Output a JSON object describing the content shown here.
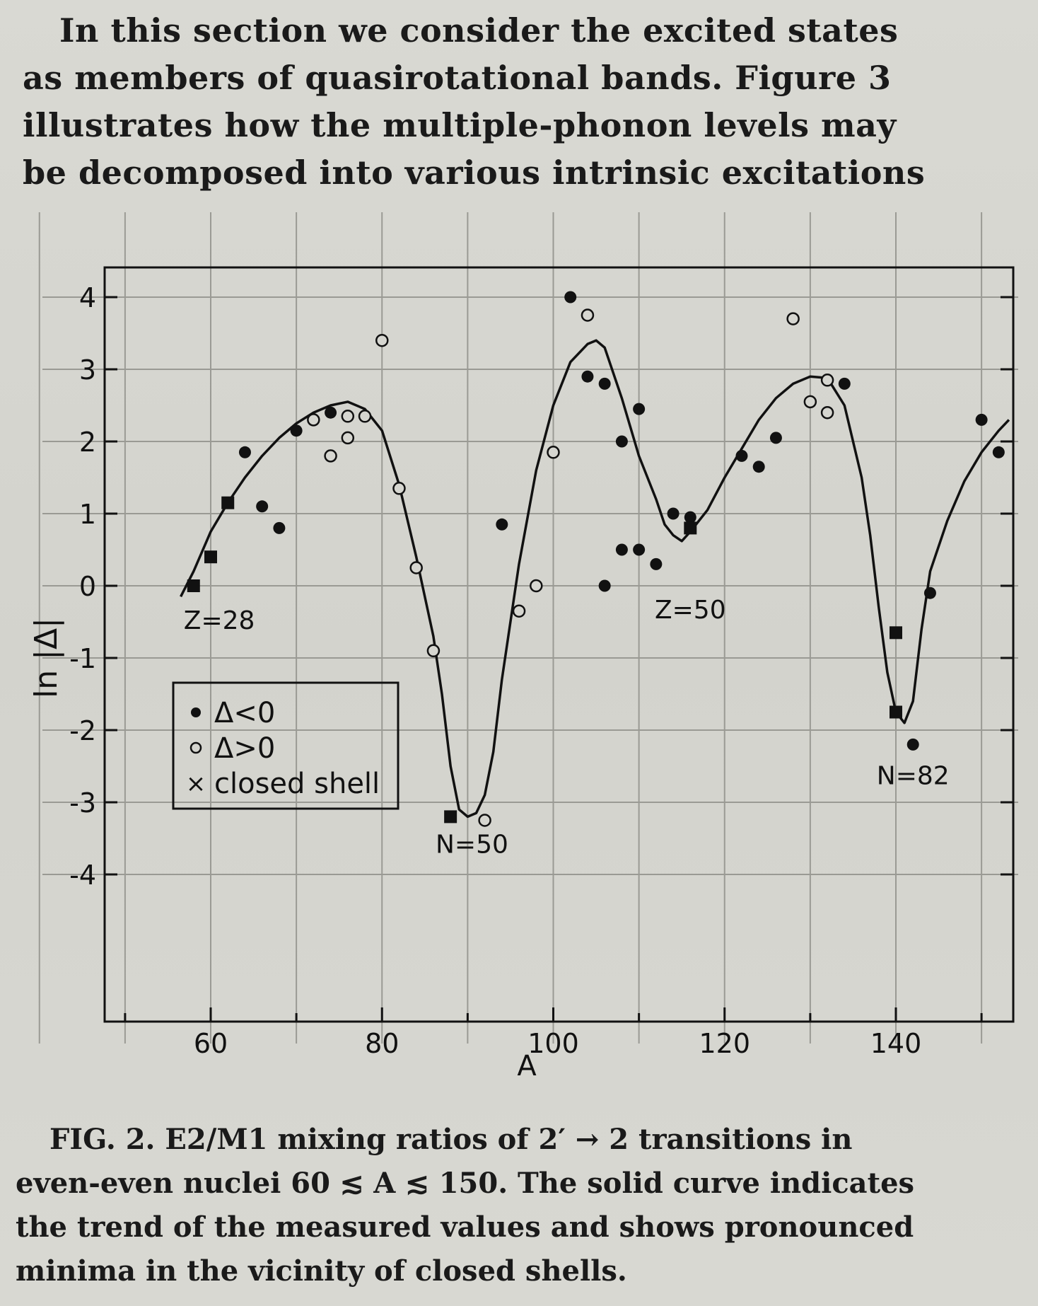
{
  "intro_lines": [
    "In this section we consider the excited states",
    "as members of quasirotational bands.  Figure 3",
    "illustrates how the multiple-phonon levels may",
    "be decomposed into various intrinsic excitations"
  ],
  "caption": {
    "label": "FIG. 2.",
    "lines": [
      "E2/M1 mixing ratios of 2′ → 2 transitions in",
      "even-even nuclei 60 ≲ A ≲ 150.  The solid curve indicates",
      "the trend of the measured values and shows pronounced",
      "minima in the vicinity of closed shells."
    ]
  },
  "chart_data": {
    "type": "scatter",
    "xlabel": "A",
    "ylabel": "ln |Δ|",
    "xlim": [
      40,
      155
    ],
    "ylim": [
      -4,
      4.4
    ],
    "xticks": [
      60,
      80,
      100,
      120,
      140
    ],
    "yticks": [
      4,
      3,
      2,
      1,
      0,
      -1,
      -2,
      -3,
      -4
    ],
    "grid": true,
    "legend": {
      "placement": "lower-left",
      "entries": [
        {
          "symbol": "filled-circle",
          "label": "Δ<0"
        },
        {
          "symbol": "open-circle",
          "label": "Δ>0"
        },
        {
          "symbol": "cross",
          "label": "closed shell"
        }
      ]
    },
    "annotations": [
      {
        "text": "Z=28",
        "x": 61,
        "y": -0.6
      },
      {
        "text": "N=50",
        "x": 90.5,
        "y": -3.7
      },
      {
        "text": "Z=50",
        "x": 116,
        "y": -0.45
      },
      {
        "text": "N=82",
        "x": 142,
        "y": -2.75
      }
    ],
    "series": [
      {
        "name": "Δ<0",
        "marker": "filled-circle",
        "points": [
          [
            64,
            1.85
          ],
          [
            66,
            1.1
          ],
          [
            68,
            0.8
          ],
          [
            70,
            2.15
          ],
          [
            74,
            2.4
          ],
          [
            94,
            0.85
          ],
          [
            102,
            4.0
          ],
          [
            104,
            2.9
          ],
          [
            106,
            2.8
          ],
          [
            106,
            0.0
          ],
          [
            108,
            2.0
          ],
          [
            108,
            0.5
          ],
          [
            110,
            2.45
          ],
          [
            110,
            0.5
          ],
          [
            112,
            0.3
          ],
          [
            114,
            1.0
          ],
          [
            116,
            0.95
          ],
          [
            122,
            1.8
          ],
          [
            124,
            1.65
          ],
          [
            126,
            2.05
          ],
          [
            134,
            2.8
          ],
          [
            142,
            -2.2
          ],
          [
            144,
            -0.1
          ],
          [
            150,
            2.3
          ],
          [
            152,
            1.85
          ]
        ]
      },
      {
        "name": "Δ>0",
        "marker": "open-circle",
        "points": [
          [
            72,
            2.3
          ],
          [
            74,
            1.8
          ],
          [
            76,
            2.35
          ],
          [
            76,
            2.05
          ],
          [
            78,
            2.35
          ],
          [
            80,
            3.4
          ],
          [
            82,
            1.35
          ],
          [
            84,
            0.25
          ],
          [
            86,
            -0.9
          ],
          [
            92,
            -3.25
          ],
          [
            96,
            -0.35
          ],
          [
            98,
            0.0
          ],
          [
            100,
            1.85
          ],
          [
            104,
            3.75
          ],
          [
            128,
            3.7
          ],
          [
            130,
            2.55
          ],
          [
            132,
            2.85
          ],
          [
            132,
            2.4
          ]
        ]
      },
      {
        "name": "closed shell",
        "marker": "square",
        "points": [
          [
            58,
            0.0
          ],
          [
            60,
            0.4
          ],
          [
            62,
            1.15
          ],
          [
            88,
            -3.2
          ],
          [
            116,
            0.8
          ],
          [
            140,
            -0.65
          ],
          [
            140,
            -1.75
          ]
        ]
      }
    ],
    "trend_curve": [
      [
        56.5,
        -0.15
      ],
      [
        58,
        0.2
      ],
      [
        60,
        0.75
      ],
      [
        62,
        1.15
      ],
      [
        64,
        1.5
      ],
      [
        66,
        1.8
      ],
      [
        68,
        2.05
      ],
      [
        70,
        2.25
      ],
      [
        72,
        2.4
      ],
      [
        74,
        2.5
      ],
      [
        76,
        2.55
      ],
      [
        78,
        2.45
      ],
      [
        80,
        2.15
      ],
      [
        82,
        1.4
      ],
      [
        84,
        0.4
      ],
      [
        86,
        -0.7
      ],
      [
        87,
        -1.5
      ],
      [
        88,
        -2.5
      ],
      [
        89,
        -3.1
      ],
      [
        90,
        -3.2
      ],
      [
        91,
        -3.15
      ],
      [
        92,
        -2.9
      ],
      [
        93,
        -2.3
      ],
      [
        94,
        -1.3
      ],
      [
        96,
        0.3
      ],
      [
        98,
        1.6
      ],
      [
        100,
        2.5
      ],
      [
        102,
        3.1
      ],
      [
        104,
        3.35
      ],
      [
        105,
        3.4
      ],
      [
        106,
        3.3
      ],
      [
        108,
        2.6
      ],
      [
        110,
        1.8
      ],
      [
        112,
        1.2
      ],
      [
        113,
        0.85
      ],
      [
        114,
        0.7
      ],
      [
        115,
        0.62
      ],
      [
        116,
        0.75
      ],
      [
        118,
        1.05
      ],
      [
        120,
        1.5
      ],
      [
        122,
        1.9
      ],
      [
        124,
        2.3
      ],
      [
        126,
        2.6
      ],
      [
        128,
        2.8
      ],
      [
        130,
        2.9
      ],
      [
        132,
        2.88
      ],
      [
        134,
        2.5
      ],
      [
        136,
        1.5
      ],
      [
        137,
        0.7
      ],
      [
        138,
        -0.3
      ],
      [
        139,
        -1.2
      ],
      [
        140,
        -1.75
      ],
      [
        141,
        -1.9
      ],
      [
        142,
        -1.6
      ],
      [
        143,
        -0.6
      ],
      [
        144,
        0.2
      ],
      [
        146,
        0.9
      ],
      [
        148,
        1.45
      ],
      [
        150,
        1.85
      ],
      [
        152,
        2.15
      ],
      [
        153.2,
        2.3
      ]
    ]
  }
}
